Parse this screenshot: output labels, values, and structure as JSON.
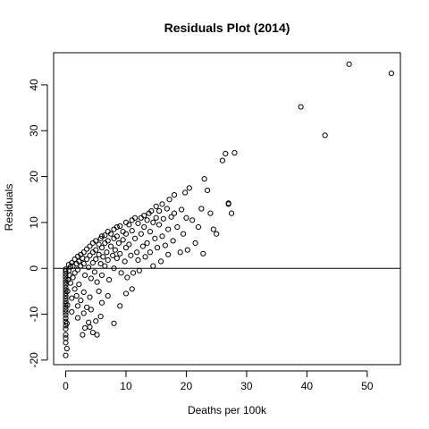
{
  "chart_data": {
    "type": "scatter",
    "title": "Residuals Plot (2014)",
    "xlabel": "Deaths per 100k",
    "ylabel": "Residuals",
    "xlim": [
      -2,
      55.5
    ],
    "ylim": [
      -21,
      47
    ],
    "xticks": [
      0,
      10,
      20,
      30,
      40,
      50
    ],
    "yticks": [
      -20,
      -10,
      0,
      10,
      20,
      30,
      40
    ],
    "reference_line": {
      "y": 0
    },
    "grid": false,
    "legend": "none",
    "marker": "open-circle",
    "colors": {
      "points": "#000000",
      "axes": "#000000",
      "background": "#ffffff"
    },
    "points": [
      [
        0,
        -19.0
      ],
      [
        0,
        -16.2
      ],
      [
        0,
        -15.2
      ],
      [
        0,
        -14.5
      ],
      [
        0,
        -13.2
      ],
      [
        0,
        -12.5
      ],
      [
        0,
        -11.6
      ],
      [
        0,
        -10.9
      ],
      [
        0,
        -10.2
      ],
      [
        0,
        -9.6
      ],
      [
        0,
        -9.0
      ],
      [
        0,
        -8.4
      ],
      [
        0,
        -7.8
      ],
      [
        0,
        -7.2
      ],
      [
        0,
        -6.6
      ],
      [
        0,
        -6.0
      ],
      [
        0,
        -5.4
      ],
      [
        0,
        -4.8
      ],
      [
        0,
        -4.2
      ],
      [
        0,
        -3.6
      ],
      [
        0,
        -3.0
      ],
      [
        0,
        -2.4
      ],
      [
        0,
        -1.8
      ],
      [
        0,
        -1.2
      ],
      [
        0,
        -0.6
      ],
      [
        0,
        -0.2
      ],
      [
        0.2,
        -17.5
      ],
      [
        0.2,
        -12.0
      ],
      [
        0.3,
        -8.0
      ],
      [
        0.3,
        -5.0
      ],
      [
        0.4,
        -2.5
      ],
      [
        0.5,
        -0.5
      ],
      [
        0.6,
        -1.5
      ],
      [
        0.8,
        -3.2
      ],
      [
        1.0,
        -6.5
      ],
      [
        1.0,
        -9.5
      ],
      [
        1.2,
        -2.0
      ],
      [
        1.5,
        -4.5
      ],
      [
        1.5,
        -1.0
      ],
      [
        1.8,
        -6.0
      ],
      [
        2.0,
        -8.2
      ],
      [
        2.0,
        -10.8
      ],
      [
        2.2,
        -3.5
      ],
      [
        2.5,
        -7.0
      ],
      [
        2.8,
        -14.5
      ],
      [
        3.0,
        -9.8
      ],
      [
        3.0,
        -5.2
      ],
      [
        3.2,
        -13.0
      ],
      [
        3.5,
        -8.5
      ],
      [
        3.8,
        -11.8
      ],
      [
        4.0,
        -6.3
      ],
      [
        4.0,
        -12.8
      ],
      [
        4.2,
        -9.0
      ],
      [
        4.5,
        -14.0
      ],
      [
        5.0,
        -11.5
      ],
      [
        5.2,
        -14.5
      ],
      [
        5.5,
        -5.0
      ],
      [
        5.8,
        -10.5
      ],
      [
        6.0,
        -7.5
      ],
      [
        7.0,
        -6.0
      ],
      [
        8.0,
        -12.0
      ],
      [
        9.0,
        -8.2
      ],
      [
        10.0,
        -5.5
      ],
      [
        11.0,
        -4.5
      ],
      [
        0.5,
        0.8
      ],
      [
        0.8,
        0.3
      ],
      [
        1.0,
        1.2
      ],
      [
        1.2,
        0.5
      ],
      [
        1.5,
        2.0
      ],
      [
        1.8,
        1.0
      ],
      [
        2.0,
        2.6
      ],
      [
        2.0,
        -0.3
      ],
      [
        2.2,
        1.5
      ],
      [
        2.5,
        3.0
      ],
      [
        2.5,
        0.5
      ],
      [
        2.8,
        2.2
      ],
      [
        3.0,
        3.5
      ],
      [
        3.0,
        1.0
      ],
      [
        3.2,
        -1.5
      ],
      [
        3.5,
        4.2
      ],
      [
        3.5,
        2.0
      ],
      [
        3.8,
        0.2
      ],
      [
        4.0,
        4.8
      ],
      [
        4.0,
        2.8
      ],
      [
        4.2,
        -2.2
      ],
      [
        4.5,
        5.5
      ],
      [
        4.5,
        3.5
      ],
      [
        4.5,
        1.2
      ],
      [
        4.8,
        -0.8
      ],
      [
        5.0,
        6.0
      ],
      [
        5.0,
        4.0
      ],
      [
        5.0,
        2.0
      ],
      [
        5.2,
        -3.0
      ],
      [
        5.5,
        5.2
      ],
      [
        5.5,
        3.0
      ],
      [
        5.8,
        6.5
      ],
      [
        5.8,
        1.0
      ],
      [
        6.0,
        7.0
      ],
      [
        6.0,
        4.5
      ],
      [
        6.0,
        -1.5
      ],
      [
        6.2,
        2.5
      ],
      [
        6.5,
        7.2
      ],
      [
        6.5,
        5.5
      ],
      [
        6.5,
        0.5
      ],
      [
        6.8,
        3.5
      ],
      [
        7.0,
        8.0
      ],
      [
        7.0,
        6.0
      ],
      [
        7.0,
        1.8
      ],
      [
        7.2,
        -2.5
      ],
      [
        7.5,
        7.5
      ],
      [
        7.5,
        4.8
      ],
      [
        7.8,
        2.8
      ],
      [
        8.0,
        8.5
      ],
      [
        8.0,
        6.5
      ],
      [
        8.0,
        0.0
      ],
      [
        8.2,
        4.0
      ],
      [
        8.5,
        9.0
      ],
      [
        8.5,
        7.0
      ],
      [
        8.5,
        2.2
      ],
      [
        8.8,
        5.5
      ],
      [
        9.0,
        9.2
      ],
      [
        9.0,
        3.2
      ],
      [
        9.2,
        -1.0
      ],
      [
        9.5,
        8.0
      ],
      [
        9.5,
        6.2
      ],
      [
        9.8,
        1.5
      ],
      [
        10.0,
        10.0
      ],
      [
        10.0,
        7.5
      ],
      [
        10.0,
        4.5
      ],
      [
        10.2,
        -2.0
      ],
      [
        10.5,
        9.5
      ],
      [
        10.5,
        5.2
      ],
      [
        10.8,
        2.8
      ],
      [
        11.0,
        10.5
      ],
      [
        11.0,
        8.2
      ],
      [
        11.2,
        -1.0
      ],
      [
        11.5,
        11.0
      ],
      [
        11.5,
        6.5
      ],
      [
        11.8,
        3.5
      ],
      [
        12.0,
        9.8
      ],
      [
        12.0,
        1.8
      ],
      [
        12.2,
        -0.5
      ],
      [
        12.5,
        11.0
      ],
      [
        12.5,
        7.5
      ],
      [
        12.8,
        4.8
      ],
      [
        13.0,
        11.5
      ],
      [
        13.0,
        9.0
      ],
      [
        13.2,
        2.5
      ],
      [
        13.5,
        10.5
      ],
      [
        13.5,
        5.5
      ],
      [
        13.8,
        12.0
      ],
      [
        14.0,
        8.0
      ],
      [
        14.0,
        3.5
      ],
      [
        14.2,
        12.5
      ],
      [
        14.5,
        10.0
      ],
      [
        14.5,
        0.5
      ],
      [
        14.8,
        6.5
      ],
      [
        15.0,
        13.5
      ],
      [
        15.0,
        11.0
      ],
      [
        15.2,
        4.5
      ],
      [
        15.5,
        12.5
      ],
      [
        15.5,
        9.5
      ],
      [
        15.8,
        1.5
      ],
      [
        16.0,
        14.0
      ],
      [
        16.0,
        7.0
      ],
      [
        16.2,
        10.8
      ],
      [
        16.5,
        5.0
      ],
      [
        16.8,
        13.0
      ],
      [
        17.0,
        8.5
      ],
      [
        17.0,
        3.0
      ],
      [
        17.2,
        15.0
      ],
      [
        17.5,
        11.2
      ],
      [
        17.8,
        6.0
      ],
      [
        18.0,
        12.0
      ],
      [
        18.0,
        16.0
      ],
      [
        18.5,
        9.0
      ],
      [
        19.0,
        3.5
      ],
      [
        19.2,
        12.8
      ],
      [
        19.5,
        7.5
      ],
      [
        19.8,
        16.5
      ],
      [
        20.0,
        11.0
      ],
      [
        20.2,
        4.0
      ],
      [
        20.5,
        17.5
      ],
      [
        21.0,
        10.5
      ],
      [
        21.5,
        5.5
      ],
      [
        22.0,
        9.0
      ],
      [
        22.5,
        13.0
      ],
      [
        22.8,
        3.2
      ],
      [
        23.0,
        19.5
      ],
      [
        23.5,
        17.0
      ],
      [
        24.0,
        12.0
      ],
      [
        24.5,
        8.5
      ],
      [
        25.0,
        7.5
      ],
      [
        26.0,
        23.5
      ],
      [
        26.5,
        25.0
      ],
      [
        27.0,
        14.0
      ],
      [
        27.0,
        14.2
      ],
      [
        27.5,
        12.0
      ],
      [
        28.0,
        25.2
      ],
      [
        39.0,
        35.2
      ],
      [
        43.0,
        29.0
      ],
      [
        47.0,
        44.5
      ],
      [
        54.0,
        42.5
      ]
    ]
  }
}
